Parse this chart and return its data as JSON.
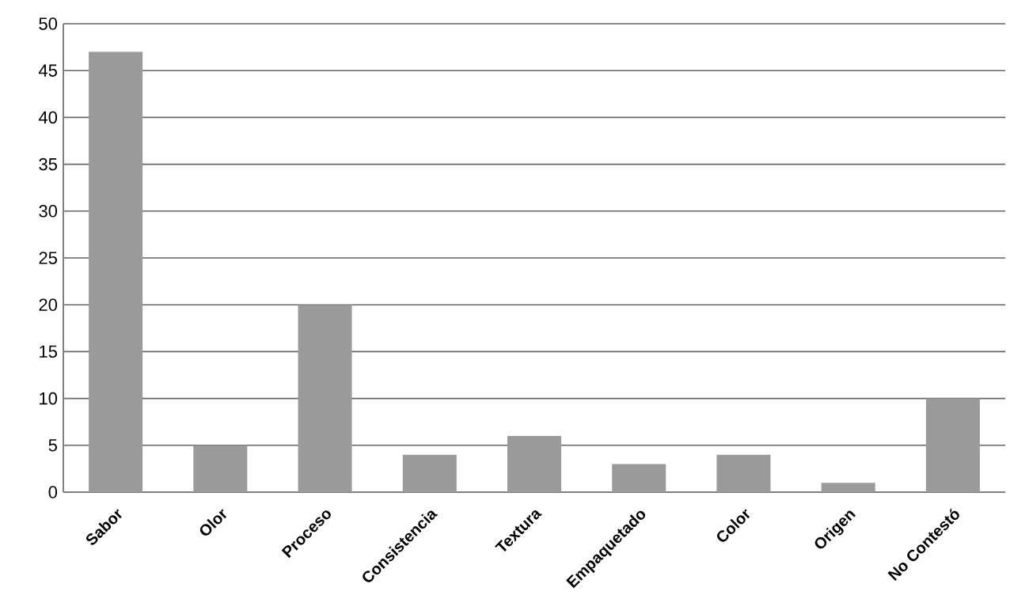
{
  "chart_data": {
    "type": "bar",
    "categories": [
      "Sabor",
      "Olor",
      "Proceso",
      "Consistencia",
      "Textura",
      "Empaquetado",
      "Color",
      "Origen",
      "No Contestó"
    ],
    "values": [
      47,
      5,
      20,
      4,
      6,
      3,
      4,
      1,
      10
    ],
    "color": "#9a9a9a",
    "ylim": [
      0,
      50
    ],
    "yticks": [
      0,
      5,
      10,
      15,
      20,
      25,
      30,
      35,
      40,
      45,
      50
    ],
    "grid": "y"
  }
}
